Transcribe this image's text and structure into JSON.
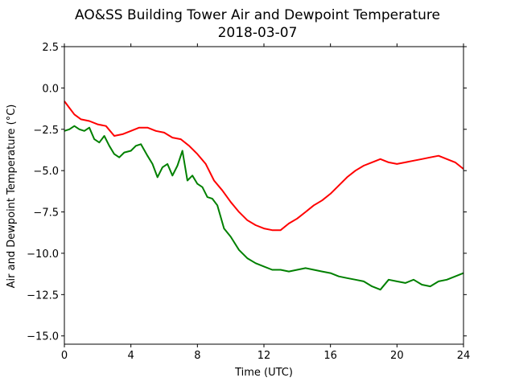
{
  "chart_data": {
    "type": "line",
    "title": "AO&SS Building Tower Air and Dewpoint Temperature",
    "subtitle": "2018-03-07",
    "xlabel": "Time (UTC)",
    "ylabel": "Air and Dewpoint Temperature (°C)",
    "xlim": [
      0,
      24
    ],
    "ylim": [
      -15.5,
      2.5
    ],
    "xticks": [
      0,
      4,
      8,
      12,
      16,
      20,
      24
    ],
    "xtick_labels": [
      "0",
      "4",
      "8",
      "12",
      "16",
      "20",
      "24"
    ],
    "yticks": [
      2.5,
      0.0,
      -2.5,
      -5.0,
      -7.5,
      -10.0,
      -12.5,
      -15.0
    ],
    "ytick_labels": [
      "2.5",
      "0.0",
      "−2.5",
      "−5.0",
      "−7.5",
      "−10.0",
      "−12.5",
      "−15.0"
    ],
    "grid": false,
    "series": [
      {
        "color": "#ff0000",
        "x": [
          0,
          0.3,
          0.6,
          1.0,
          1.5,
          2.0,
          2.5,
          3.0,
          3.5,
          4.0,
          4.5,
          5.0,
          5.5,
          6.0,
          6.5,
          7.0,
          7.5,
          8.0,
          8.5,
          9.0,
          9.5,
          10.0,
          10.5,
          11.0,
          11.5,
          12.0,
          12.5,
          13.0,
          13.5,
          14.0,
          14.5,
          15.0,
          15.5,
          16.0,
          16.5,
          17.0,
          17.5,
          18.0,
          18.5,
          19.0,
          19.5,
          20.0,
          20.5,
          21.0,
          21.5,
          22.0,
          22.5,
          23.0,
          23.5,
          24.0
        ],
        "values": [
          -0.8,
          -1.2,
          -1.6,
          -1.9,
          -2.0,
          -2.2,
          -2.3,
          -2.9,
          -2.8,
          -2.6,
          -2.4,
          -2.4,
          -2.6,
          -2.7,
          -3.0,
          -3.1,
          -3.5,
          -4.0,
          -4.6,
          -5.6,
          -6.2,
          -6.9,
          -7.5,
          -8.0,
          -8.3,
          -8.5,
          -8.6,
          -8.6,
          -8.2,
          -7.9,
          -7.5,
          -7.1,
          -6.8,
          -6.4,
          -5.9,
          -5.4,
          -5.0,
          -4.7,
          -4.5,
          -4.3,
          -4.5,
          -4.6,
          -4.5,
          -4.4,
          -4.3,
          -4.2,
          -4.1,
          -4.3,
          -4.5,
          -4.9
        ]
      },
      {
        "color": "#008000",
        "x": [
          0,
          0.3,
          0.6,
          0.9,
          1.2,
          1.5,
          1.8,
          2.1,
          2.4,
          2.7,
          3.0,
          3.3,
          3.6,
          4.0,
          4.3,
          4.6,
          5.0,
          5.3,
          5.6,
          5.9,
          6.2,
          6.5,
          6.8,
          7.1,
          7.4,
          7.7,
          8.0,
          8.3,
          8.6,
          8.9,
          9.2,
          9.6,
          10.0,
          10.5,
          11.0,
          11.5,
          12.0,
          12.5,
          13.0,
          13.5,
          14.0,
          14.5,
          15.0,
          15.5,
          16.0,
          16.5,
          17.0,
          17.5,
          18.0,
          18.5,
          19.0,
          19.5,
          20.0,
          20.5,
          21.0,
          21.5,
          22.0,
          22.5,
          23.0,
          23.5,
          24.0
        ],
        "values": [
          -2.6,
          -2.5,
          -2.3,
          -2.5,
          -2.6,
          -2.4,
          -3.1,
          -3.3,
          -2.9,
          -3.5,
          -4.0,
          -4.2,
          -3.9,
          -3.8,
          -3.5,
          -3.4,
          -4.1,
          -4.6,
          -5.4,
          -4.8,
          -4.6,
          -5.3,
          -4.7,
          -3.8,
          -5.6,
          -5.3,
          -5.8,
          -6.0,
          -6.6,
          -6.7,
          -7.1,
          -8.5,
          -9.0,
          -9.8,
          -10.3,
          -10.6,
          -10.8,
          -11.0,
          -11.0,
          -11.1,
          -11.0,
          -10.9,
          -11.0,
          -11.1,
          -11.2,
          -11.4,
          -11.5,
          -11.6,
          -11.7,
          -12.0,
          -12.2,
          -11.6,
          -11.7,
          -11.8,
          -11.6,
          -11.9,
          -12.0,
          -11.7,
          -11.6,
          -11.4,
          -11.2
        ]
      }
    ]
  }
}
